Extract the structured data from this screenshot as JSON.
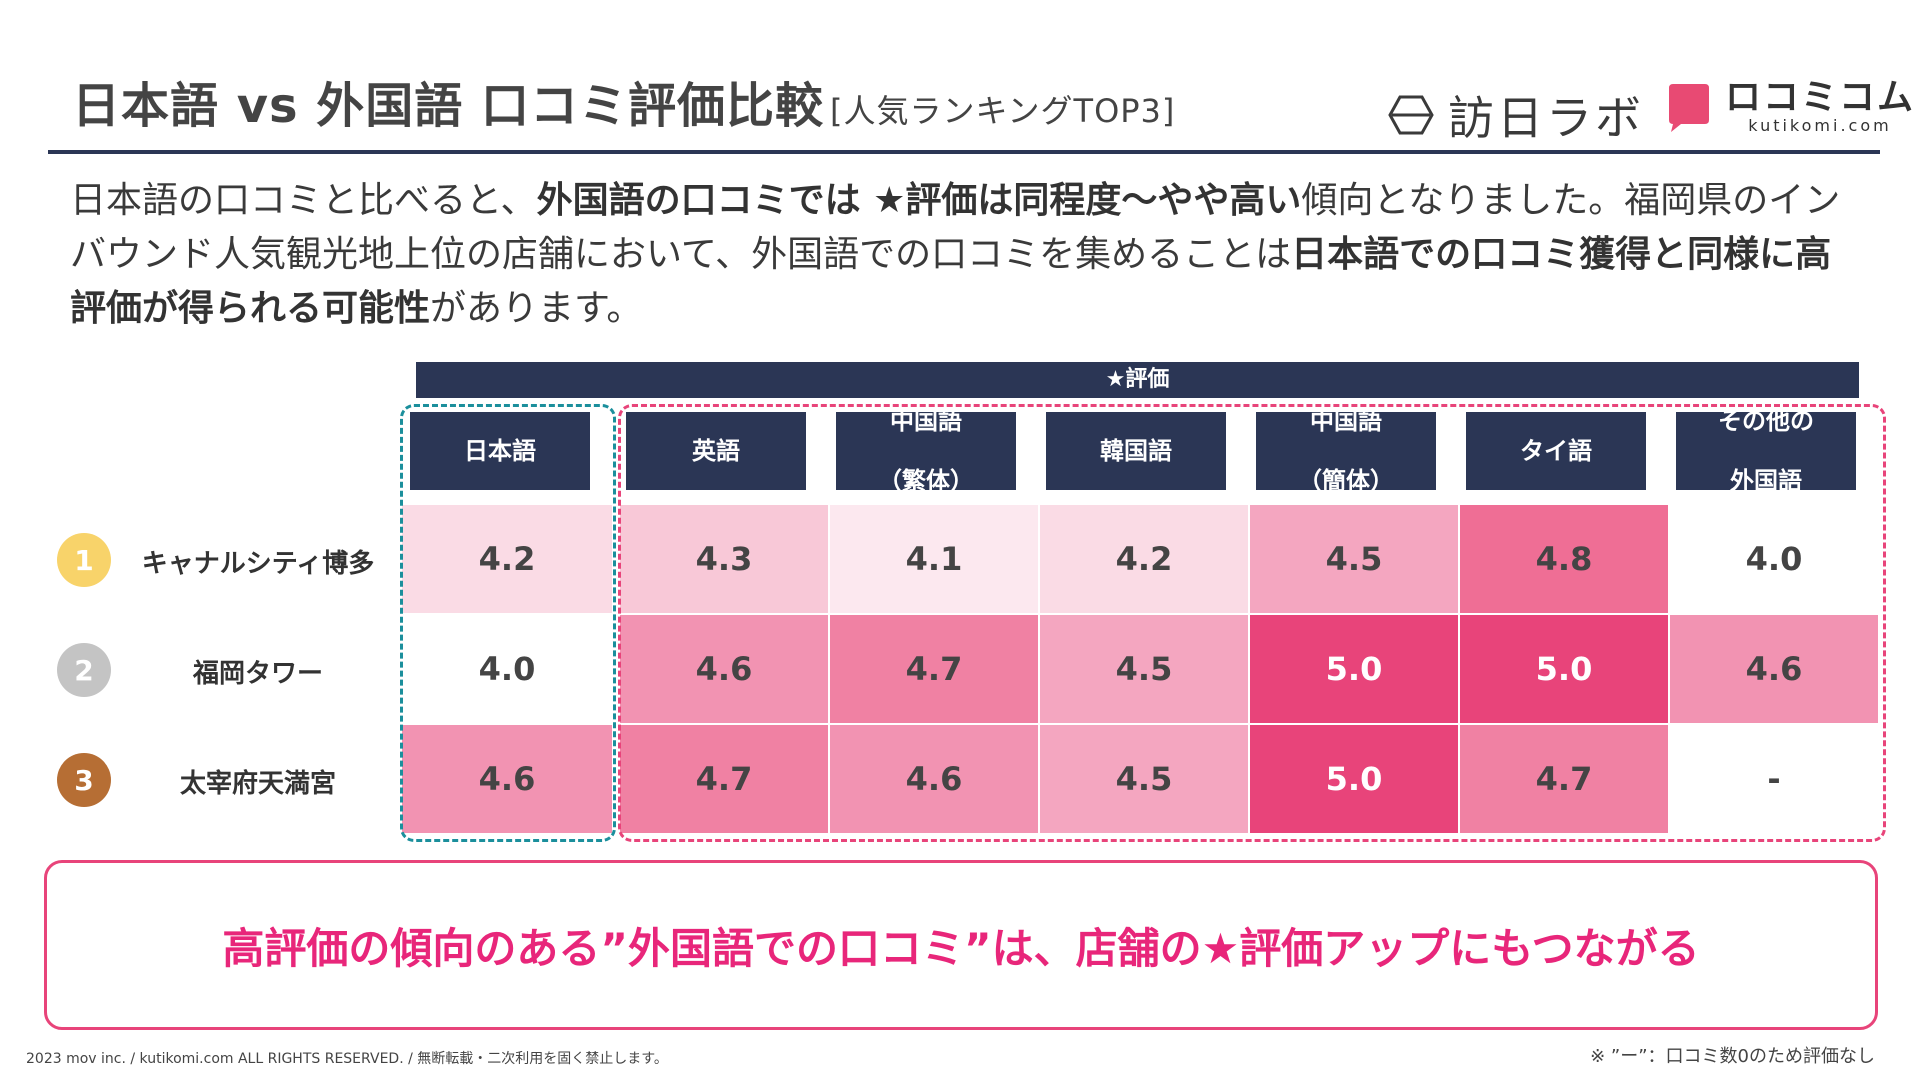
{
  "header": {
    "title": "日本語 vs 外国語 口コミ評価比較",
    "subtitle": "[人気ランキングTOP3]"
  },
  "logos": {
    "houjitsu_lab": "訪日ラボ",
    "kutikomi": "ロコミコム",
    "kutikomi_domain": "kutikomi.com",
    "kutikomi_color": "#e84a73"
  },
  "intro": {
    "p1": "日本語の口コミと比べると、",
    "b1": "外国語の口コミでは ★評価は同程度〜やや高い",
    "p2": "傾向となりました。福岡県のインバウンド人気観光地上位の店舗において、外国語での口コミを集めることは",
    "b2": "日本語での口コミ獲得と同様に高評価が得られる可能性",
    "p3": "があります。"
  },
  "table": {
    "banner": "★評価",
    "columns": [
      {
        "l1": "日本語",
        "l2": ""
      },
      {
        "l1": "英語",
        "l2": ""
      },
      {
        "l1": "中国語",
        "l2": "（繁体）"
      },
      {
        "l1": "韓国語",
        "l2": ""
      },
      {
        "l1": "中国語",
        "l2": "（簡体）"
      },
      {
        "l1": "タイ語",
        "l2": ""
      },
      {
        "l1": "その他の",
        "l2": "外国語"
      }
    ],
    "rows": [
      {
        "rank": "1",
        "rank_color": "#f8d36a",
        "name": "キャナルシティ博多",
        "values": [
          "4.2",
          "4.3",
          "4.1",
          "4.2",
          "4.5",
          "4.8",
          "4.0"
        ]
      },
      {
        "rank": "2",
        "rank_color": "#c4c4c4",
        "name": "福岡タワー",
        "values": [
          "4.0",
          "4.6",
          "4.7",
          "4.5",
          "5.0",
          "5.0",
          "4.6"
        ]
      },
      {
        "rank": "3",
        "rank_color": "#b66e34",
        "name": "太宰府天満宮",
        "values": [
          "4.6",
          "4.7",
          "4.6",
          "4.5",
          "5.0",
          "4.7",
          "-"
        ]
      }
    ]
  },
  "callout": "高評価の傾向のある”外国語での口コミ”は、店舗の★評価アップにもつながる",
  "footer": "2023 mov inc. / kutikomi.com ALL RIGHTS RESERVED. / 無断転載・二次利用を固く禁止します。",
  "note": "※ ”ー”：口コミ数0のため評価なし",
  "colors": {
    "navy": "#2b3655",
    "accent_pink": "#e8447a",
    "teal": "#1b8f9c"
  }
}
